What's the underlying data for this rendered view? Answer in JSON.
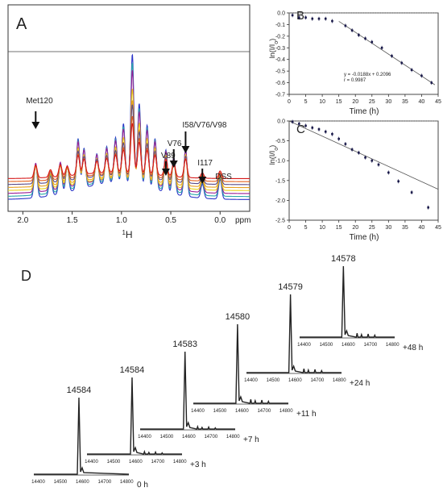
{
  "colors": {
    "axis": "#333333",
    "spectrum_series": [
      "#2b35c9",
      "#2aa8a8",
      "#9a1e96",
      "#e9d218",
      "#e8a020",
      "#5a4a86",
      "#e5601c",
      "#d61818"
    ],
    "mass_trace": "#222222",
    "fit_line": "#555555"
  },
  "chart_data": [
    {
      "panel": "A",
      "type": "line",
      "xlabel": "1H",
      "x_unit": "ppm",
      "x_reversed": true,
      "xlim": [
        2.15,
        -0.3
      ],
      "x_ticks": [
        "2.0",
        "1.5",
        "1.0",
        "0.5",
        "0.0"
      ],
      "x_tick_values": [
        2.0,
        1.5,
        1.0,
        0.5,
        0.0
      ],
      "annotations": [
        {
          "label": "Met120",
          "ppm": 1.87
        },
        {
          "label": "V89",
          "ppm": 0.55
        },
        {
          "label": "V76",
          "ppm": 0.47
        },
        {
          "label": "I58/V76/V98",
          "ppm": 0.35
        },
        {
          "label": "I117",
          "ppm": 0.18
        },
        {
          "label": "DSS",
          "ppm": 0.0
        }
      ],
      "peaks": [
        {
          "ppm": 1.87,
          "height": 0.24
        },
        {
          "ppm": 1.72,
          "height": 0.14
        },
        {
          "ppm": 1.62,
          "height": 0.22
        },
        {
          "ppm": 1.55,
          "height": 0.18
        },
        {
          "ppm": 1.44,
          "height": 0.36
        },
        {
          "ppm": 1.38,
          "height": 0.28
        },
        {
          "ppm": 1.25,
          "height": 0.22
        },
        {
          "ppm": 1.15,
          "height": 0.26
        },
        {
          "ppm": 1.06,
          "height": 0.32
        },
        {
          "ppm": 0.98,
          "height": 0.42
        },
        {
          "ppm": 0.89,
          "height": 0.92
        },
        {
          "ppm": 0.82,
          "height": 0.58
        },
        {
          "ppm": 0.74,
          "height": 0.44
        },
        {
          "ppm": 0.66,
          "height": 0.36
        },
        {
          "ppm": 0.55,
          "height": 0.3
        },
        {
          "ppm": 0.47,
          "height": 0.26
        },
        {
          "ppm": 0.35,
          "height": 0.34
        },
        {
          "ppm": 0.18,
          "height": 0.1
        },
        {
          "ppm": 0.0,
          "height": 0.14
        }
      ],
      "series_scale": [
        1.0,
        0.92,
        0.85,
        0.7,
        0.6,
        0.55,
        0.45,
        0.38
      ]
    },
    {
      "panel": "B",
      "type": "scatter",
      "xlabel": "Time (h)",
      "ylabel": "ln(I/I0)",
      "xlim": [
        0,
        45
      ],
      "ylim": [
        -0.7,
        0.0
      ],
      "x_ticks": [
        0,
        5,
        10,
        15,
        20,
        25,
        30,
        35,
        40,
        45
      ],
      "y_ticks": [
        "0.0",
        "-0.1",
        "-0.2",
        "-0.3",
        "-0.4",
        "-0.5",
        "-0.6",
        "-0.7"
      ],
      "y_tick_values": [
        0.0,
        -0.1,
        -0.2,
        -0.3,
        -0.4,
        -0.5,
        -0.6,
        -0.7
      ],
      "points": [
        {
          "x": 1,
          "y": -0.02
        },
        {
          "x": 3,
          "y": -0.04
        },
        {
          "x": 5,
          "y": -0.04
        },
        {
          "x": 7,
          "y": -0.05
        },
        {
          "x": 9,
          "y": -0.05
        },
        {
          "x": 11,
          "y": -0.05
        },
        {
          "x": 13,
          "y": -0.07
        },
        {
          "x": 17,
          "y": -0.11
        },
        {
          "x": 19,
          "y": -0.15
        },
        {
          "x": 21,
          "y": -0.19
        },
        {
          "x": 23,
          "y": -0.22
        },
        {
          "x": 25,
          "y": -0.25
        },
        {
          "x": 28,
          "y": -0.3
        },
        {
          "x": 31,
          "y": -0.37
        },
        {
          "x": 34,
          "y": -0.43
        },
        {
          "x": 37,
          "y": -0.49
        },
        {
          "x": 40,
          "y": -0.54
        },
        {
          "x": 43,
          "y": -0.6
        }
      ],
      "fit": {
        "x": [
          15,
          44
        ],
        "y": [
          -0.0724,
          -0.6176
        ]
      },
      "equation": "y = -0.0188x + 0.2096",
      "r": "r = 0.9987"
    },
    {
      "panel": "C",
      "type": "scatter",
      "xlabel": "Time (h)",
      "ylabel": "ln(I/I0)",
      "xlim": [
        0,
        45
      ],
      "ylim": [
        -2.5,
        0.0
      ],
      "x_ticks": [
        0,
        5,
        10,
        15,
        20,
        25,
        30,
        35,
        40,
        45
      ],
      "y_ticks": [
        "0.0",
        "-0.5",
        "-1.0",
        "-1.5",
        "-2.0",
        "-2.5"
      ],
      "y_tick_values": [
        0.0,
        -0.5,
        -1.0,
        -1.5,
        -2.0,
        -2.5
      ],
      "points": [
        {
          "x": 1,
          "y": -0.02
        },
        {
          "x": 3,
          "y": -0.07
        },
        {
          "x": 5,
          "y": -0.12
        },
        {
          "x": 7,
          "y": -0.17
        },
        {
          "x": 9,
          "y": -0.21
        },
        {
          "x": 11,
          "y": -0.27
        },
        {
          "x": 13,
          "y": -0.33
        },
        {
          "x": 15,
          "y": -0.45
        },
        {
          "x": 17,
          "y": -0.58
        },
        {
          "x": 19,
          "y": -0.72
        },
        {
          "x": 21,
          "y": -0.8
        },
        {
          "x": 23,
          "y": -0.92
        },
        {
          "x": 25,
          "y": -1.0
        },
        {
          "x": 27,
          "y": -1.1
        },
        {
          "x": 30,
          "y": -1.3
        },
        {
          "x": 33,
          "y": -1.52
        },
        {
          "x": 37,
          "y": -1.8
        },
        {
          "x": 42,
          "y": -2.18
        }
      ],
      "fit": {
        "x": [
          0,
          45
        ],
        "y": [
          0.0,
          -1.72
        ]
      }
    },
    {
      "panel": "D",
      "type": "line",
      "mass_axis_ticks": [
        "14400",
        "14500",
        "14600",
        "14700",
        "14800"
      ],
      "mass_axis_values": [
        14400,
        14500,
        14600,
        14700,
        14800
      ],
      "spectra": [
        {
          "time": "0 h",
          "peak_label": "14584",
          "peak_mass": 14584
        },
        {
          "time": "+3 h",
          "peak_label": "14584",
          "peak_mass": 14584
        },
        {
          "time": "+7 h",
          "peak_label": "14583",
          "peak_mass": 14583
        },
        {
          "time": "+11 h",
          "peak_label": "14580",
          "peak_mass": 14580
        },
        {
          "time": "+24 h",
          "peak_label": "14579",
          "peak_mass": 14579
        },
        {
          "time": "+48 h",
          "peak_label": "14578",
          "peak_mass": 14578
        }
      ]
    }
  ]
}
